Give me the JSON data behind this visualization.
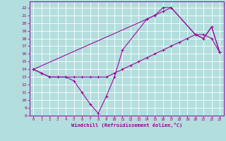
{
  "xlabel": "Windchill (Refroidissement éolien,°C)",
  "background_color": "#b2dede",
  "line_color": "#990099",
  "grid_color": "#ffffff",
  "xlim": [
    -0.5,
    23.5
  ],
  "ylim": [
    8,
    22.8
  ],
  "yticks": [
    8,
    9,
    10,
    11,
    12,
    13,
    14,
    15,
    16,
    17,
    18,
    19,
    20,
    21,
    22
  ],
  "xticks": [
    0,
    1,
    2,
    3,
    4,
    5,
    6,
    7,
    8,
    9,
    10,
    11,
    12,
    13,
    14,
    15,
    16,
    17,
    18,
    19,
    20,
    21,
    22,
    23
  ],
  "line1_x": [
    0,
    1,
    2,
    3,
    4,
    5,
    6,
    7,
    8,
    9,
    10,
    11,
    12,
    13,
    14,
    15,
    16,
    17,
    18,
    19,
    20,
    21,
    22,
    23
  ],
  "line1_y": [
    14,
    13.5,
    13,
    13,
    13,
    13,
    13,
    13,
    13,
    13,
    13.5,
    14,
    14.5,
    15,
    15.5,
    16,
    16.5,
    17,
    17.5,
    18,
    18.5,
    18.5,
    18,
    16.2
  ],
  "line2_x": [
    0,
    1,
    2,
    3,
    4,
    5,
    6,
    7,
    8,
    9,
    10,
    11,
    14,
    15,
    16,
    17,
    20,
    21,
    22,
    23
  ],
  "line2_y": [
    14,
    13.5,
    13,
    13,
    13,
    12.5,
    11,
    9.5,
    8.3,
    10.5,
    13,
    16.5,
    20.5,
    21,
    21.5,
    22,
    18.5,
    18,
    19.5,
    16.2
  ],
  "line3_x": [
    0,
    14,
    15,
    16,
    17,
    20,
    21,
    22,
    23
  ],
  "line3_y": [
    14,
    20.5,
    21,
    22,
    22,
    18.5,
    18,
    19.5,
    16.2
  ]
}
